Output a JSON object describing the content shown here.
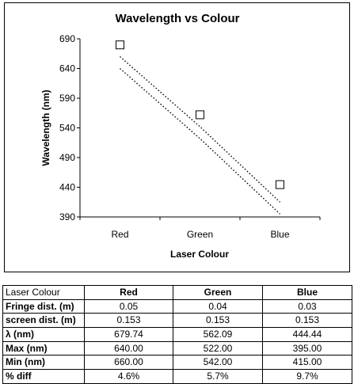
{
  "chart_data": {
    "type": "scatter",
    "title": "Wavelength vs Colour",
    "xlabel": "Laser Colour",
    "ylabel": "Wavelength  (nm)",
    "categories": [
      "Red",
      "Green",
      "Blue"
    ],
    "ylim": [
      390,
      690
    ],
    "yticks": [
      "690",
      "640",
      "590",
      "540",
      "490",
      "440",
      "390"
    ],
    "series": [
      {
        "values": [
          679.74,
          562.09,
          444.44
        ],
        "style": "square-marker"
      },
      {
        "values": [
          660,
          542,
          415
        ],
        "style": "dotted-line"
      },
      {
        "values": [
          640,
          522,
          395
        ],
        "style": "dotted-line"
      }
    ],
    "grid": false,
    "legend": "none"
  },
  "table": {
    "header": [
      "Laser Colour",
      "Red",
      "Green",
      "Blue"
    ],
    "rows": [
      [
        "Fringe dist. (m)",
        "0.05",
        "0.04",
        "0.03"
      ],
      [
        "screen dist. (m)",
        "0.153",
        "0.153",
        "0.153"
      ],
      [
        "λ (nm)",
        "679.74",
        "562.09",
        "444.44"
      ],
      [
        "Max (nm)",
        "640.00",
        "522.00",
        "395.00"
      ],
      [
        "Min (nm)",
        "660.00",
        "542.00",
        "415.00"
      ],
      [
        "% diff",
        "4.6%",
        "5.7%",
        "9.7%"
      ]
    ]
  }
}
